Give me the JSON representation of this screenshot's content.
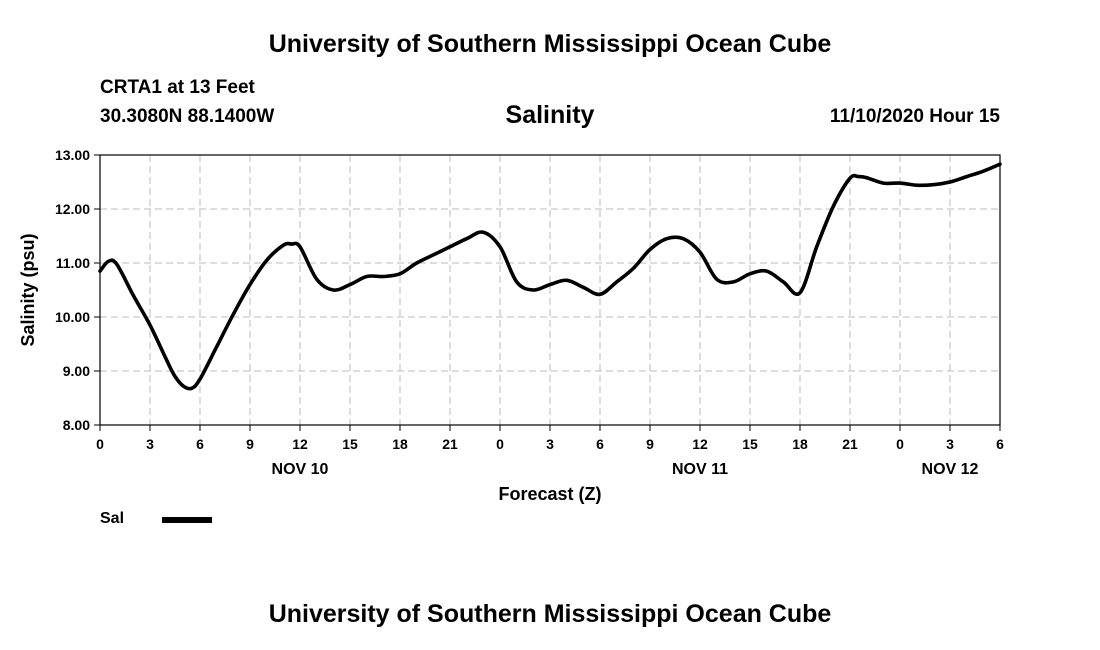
{
  "header": {
    "title_top": "University of Southern Mississippi Ocean Cube",
    "station": "CRTA1 at 13 Feet",
    "coords": "30.3080N 88.1400W",
    "variable": "Salinity",
    "datetime": "11/10/2020 Hour 15"
  },
  "footer": {
    "title_bottom": "University of Southern Mississippi Ocean Cube"
  },
  "colors": {
    "line": "#000000",
    "grid": "#bbbbbb",
    "axis": "#000000"
  },
  "chart_data": {
    "type": "line",
    "title": "Salinity",
    "xlabel": "Forecast (Z)",
    "ylabel": "Salinity (psu)",
    "xlim": [
      0,
      54
    ],
    "ylim": [
      8.0,
      13.0
    ],
    "grid": true,
    "yticks": [
      "8.00",
      "9.00",
      "10.00",
      "11.00",
      "12.00",
      "13.00"
    ],
    "xticks": [
      "0",
      "3",
      "6",
      "9",
      "12",
      "15",
      "18",
      "21",
      "0",
      "3",
      "6",
      "9",
      "12",
      "15",
      "18",
      "21",
      "0",
      "3",
      "6"
    ],
    "date_labels": [
      {
        "label": "NOV 10",
        "hour": 12
      },
      {
        "label": "NOV 11",
        "hour": 36
      },
      {
        "label": "NOV 12",
        "hour": 51
      }
    ],
    "legend": {
      "position": "bottom-left",
      "entries": [
        "Sal"
      ]
    },
    "series": [
      {
        "name": "Sal",
        "x": [
          0,
          0.5,
          1,
          2,
          3,
          4,
          4.5,
          5,
          5.5,
          6,
          7,
          8,
          9,
          10,
          11,
          11.5,
          12,
          13,
          14,
          15,
          16,
          17,
          18,
          19,
          20,
          21,
          22,
          23,
          24,
          25,
          26,
          27,
          28,
          29,
          30,
          31,
          32,
          33,
          34,
          35,
          36,
          37,
          38,
          39,
          40,
          41,
          42,
          43,
          44,
          45,
          45.5,
          46,
          47,
          48,
          49,
          50,
          51,
          52,
          53,
          54
        ],
        "y": [
          10.85,
          11.03,
          10.98,
          10.4,
          9.85,
          9.2,
          8.9,
          8.72,
          8.68,
          8.85,
          9.45,
          10.05,
          10.6,
          11.05,
          11.33,
          11.35,
          11.3,
          10.7,
          10.5,
          10.6,
          10.75,
          10.75,
          10.8,
          11.0,
          11.15,
          11.3,
          11.45,
          11.57,
          11.3,
          10.65,
          10.5,
          10.6,
          10.68,
          10.55,
          10.42,
          10.65,
          10.9,
          11.25,
          11.45,
          11.45,
          11.2,
          10.7,
          10.65,
          10.8,
          10.85,
          10.65,
          10.45,
          11.3,
          12.05,
          12.57,
          12.6,
          12.58,
          12.48,
          12.48,
          12.44,
          12.45,
          12.5,
          12.6,
          12.7,
          12.83
        ]
      }
    ]
  },
  "legend": {
    "sal_label": "Sal"
  }
}
